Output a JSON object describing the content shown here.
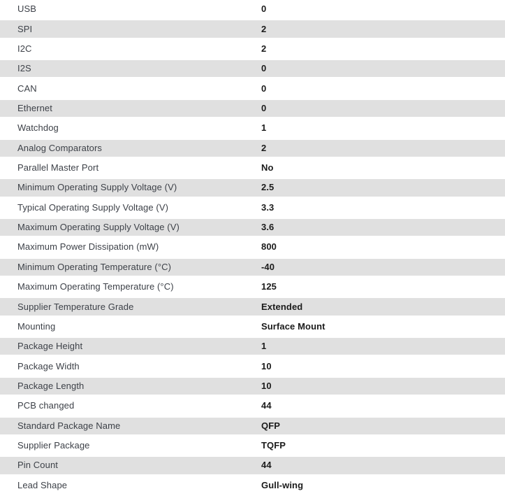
{
  "colors": {
    "row_alt_background": "#e0e0e0",
    "row_background": "#ffffff",
    "label_text": "#3d4148",
    "value_text": "#1b1b1b"
  },
  "spec_table": {
    "rows": [
      {
        "label": "USB",
        "value": "0"
      },
      {
        "label": "SPI",
        "value": "2"
      },
      {
        "label": "I2C",
        "value": "2"
      },
      {
        "label": "I2S",
        "value": "0"
      },
      {
        "label": "CAN",
        "value": "0"
      },
      {
        "label": "Ethernet",
        "value": "0"
      },
      {
        "label": "Watchdog",
        "value": "1"
      },
      {
        "label": "Analog Comparators",
        "value": "2"
      },
      {
        "label": "Parallel Master Port",
        "value": "No"
      },
      {
        "label": "Minimum Operating Supply Voltage (V)",
        "value": "2.5"
      },
      {
        "label": "Typical Operating Supply Voltage (V)",
        "value": "3.3"
      },
      {
        "label": "Maximum Operating Supply Voltage (V)",
        "value": "3.6"
      },
      {
        "label": "Maximum Power Dissipation (mW)",
        "value": "800"
      },
      {
        "label": "Minimum Operating Temperature (°C)",
        "value": "-40"
      },
      {
        "label": "Maximum Operating Temperature (°C)",
        "value": "125"
      },
      {
        "label": "Supplier Temperature Grade",
        "value": "Extended"
      },
      {
        "label": "Mounting",
        "value": "Surface Mount"
      },
      {
        "label": "Package Height",
        "value": "1"
      },
      {
        "label": "Package Width",
        "value": "10"
      },
      {
        "label": "Package Length",
        "value": "10"
      },
      {
        "label": "PCB changed",
        "value": "44"
      },
      {
        "label": "Standard Package Name",
        "value": "QFP"
      },
      {
        "label": "Supplier Package",
        "value": "TQFP"
      },
      {
        "label": "Pin Count",
        "value": "44"
      },
      {
        "label": "Lead Shape",
        "value": "Gull-wing"
      }
    ]
  }
}
